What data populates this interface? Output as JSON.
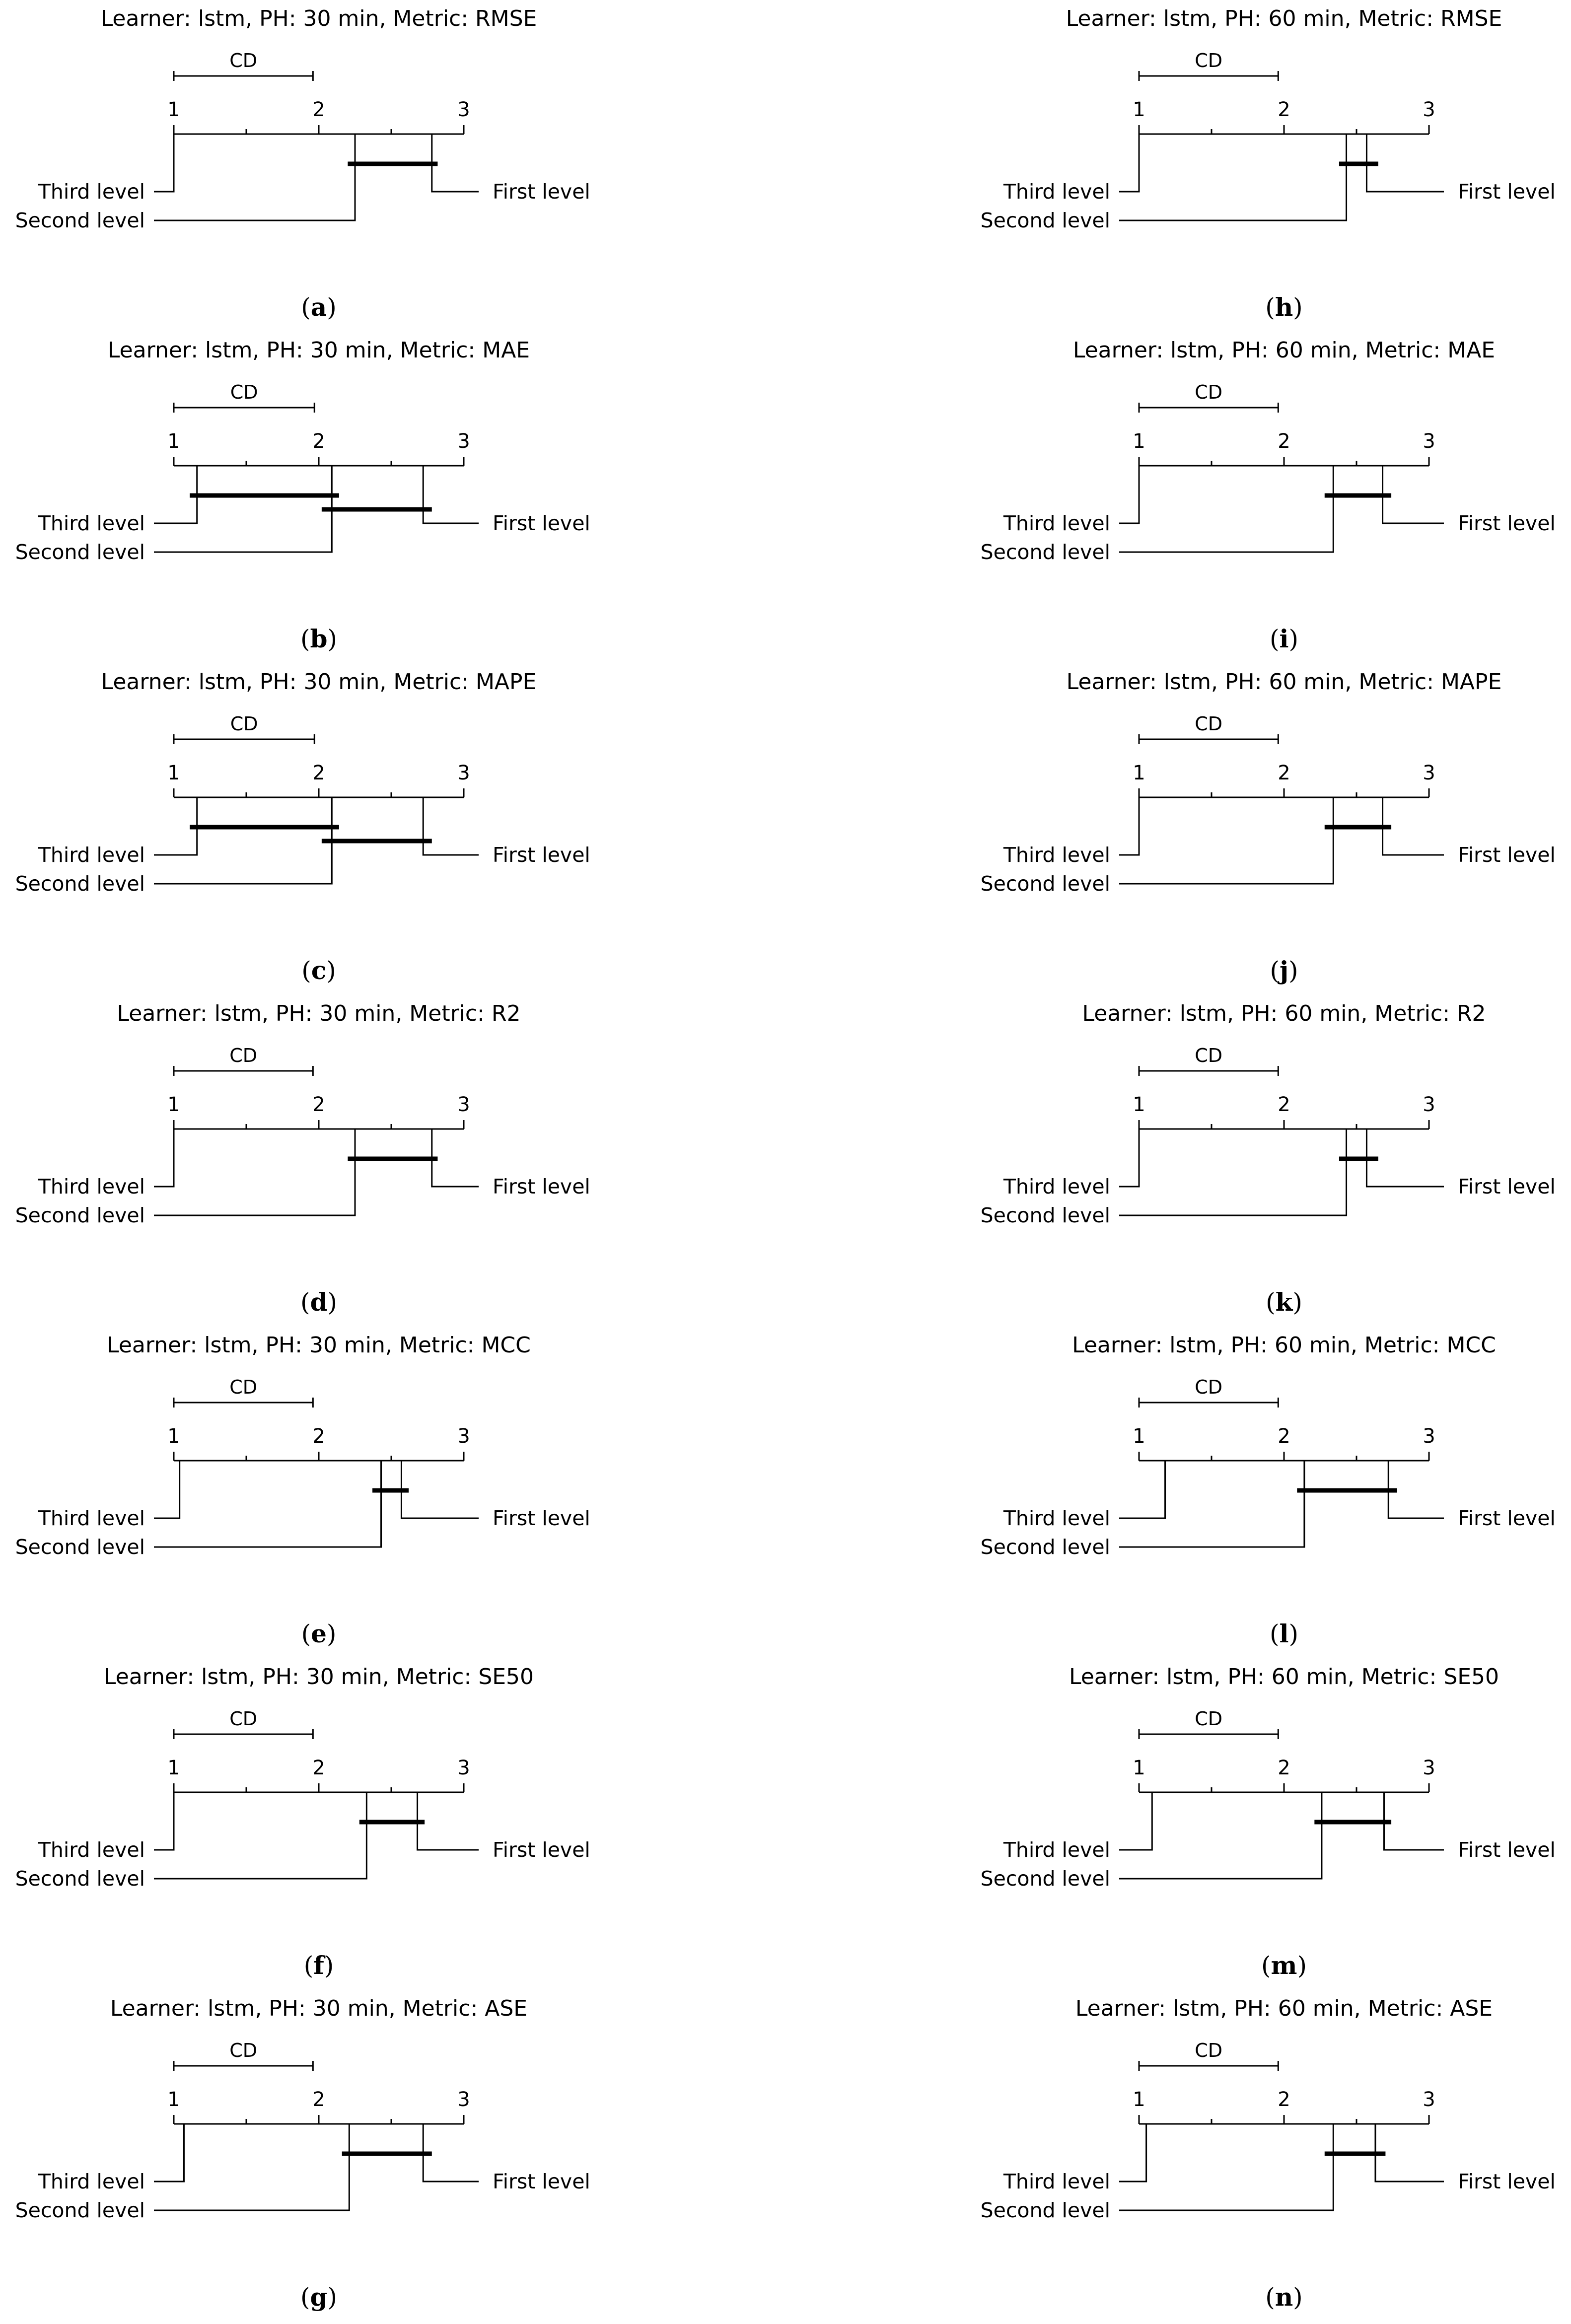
{
  "chart_data": [
    {
      "id": "a",
      "type": "critical-difference",
      "title": "Learner: lstm, PH: 30 min, Metric: RMSE",
      "axis": {
        "min": 1,
        "max": 3,
        "ticks": [
          1,
          2,
          3
        ]
      },
      "cd_label": "CD",
      "cd": 0.96,
      "items": [
        {
          "name": "First level",
          "rank": 2.78
        },
        {
          "name": "Second level",
          "rank": 2.25
        },
        {
          "name": "Third level",
          "rank": 1.0
        }
      ],
      "cliques": [
        [
          2.2,
          2.82
        ]
      ],
      "caption": "a"
    },
    {
      "id": "b",
      "type": "critical-difference",
      "title": "Learner: lstm, PH: 30 min, Metric: MAE",
      "axis": {
        "min": 1,
        "max": 3,
        "ticks": [
          1,
          2,
          3
        ]
      },
      "cd_label": "CD",
      "cd": 0.97,
      "items": [
        {
          "name": "First level",
          "rank": 2.72
        },
        {
          "name": "Second level",
          "rank": 2.09
        },
        {
          "name": "Third level",
          "rank": 1.16
        }
      ],
      "cliques": [
        [
          1.11,
          2.14
        ],
        [
          2.02,
          2.78
        ]
      ],
      "caption": "b"
    },
    {
      "id": "c",
      "type": "critical-difference",
      "title": "Learner: lstm, PH: 30 min, Metric: MAPE",
      "axis": {
        "min": 1,
        "max": 3,
        "ticks": [
          1,
          2,
          3
        ]
      },
      "cd_label": "CD",
      "cd": 0.97,
      "items": [
        {
          "name": "First level",
          "rank": 2.72
        },
        {
          "name": "Second level",
          "rank": 2.09
        },
        {
          "name": "Third level",
          "rank": 1.16
        }
      ],
      "cliques": [
        [
          1.11,
          2.14
        ],
        [
          2.02,
          2.78
        ]
      ],
      "caption": "c"
    },
    {
      "id": "d",
      "type": "critical-difference",
      "title": "Learner: lstm, PH: 30 min, Metric: R2",
      "axis": {
        "min": 1,
        "max": 3,
        "ticks": [
          1,
          2,
          3
        ]
      },
      "cd_label": "CD",
      "cd": 0.96,
      "items": [
        {
          "name": "First level",
          "rank": 2.78
        },
        {
          "name": "Second level",
          "rank": 2.25
        },
        {
          "name": "Third level",
          "rank": 1.0
        }
      ],
      "cliques": [
        [
          2.2,
          2.82
        ]
      ],
      "caption": "d"
    },
    {
      "id": "e",
      "type": "critical-difference",
      "title": "Learner: lstm, PH: 30 min, Metric: MCC",
      "axis": {
        "min": 1,
        "max": 3,
        "ticks": [
          1,
          2,
          3
        ]
      },
      "cd_label": "CD",
      "cd": 0.96,
      "items": [
        {
          "name": "First level",
          "rank": 2.57
        },
        {
          "name": "Second level",
          "rank": 2.43
        },
        {
          "name": "Third level",
          "rank": 1.04
        }
      ],
      "cliques": [
        [
          2.37,
          2.62
        ]
      ],
      "caption": "e"
    },
    {
      "id": "f",
      "type": "critical-difference",
      "title": "Learner: lstm, PH: 30 min, Metric: SE50",
      "axis": {
        "min": 1,
        "max": 3,
        "ticks": [
          1,
          2,
          3
        ]
      },
      "cd_label": "CD",
      "cd": 0.96,
      "items": [
        {
          "name": "First level",
          "rank": 2.68
        },
        {
          "name": "Second level",
          "rank": 2.33
        },
        {
          "name": "Third level",
          "rank": 1.0
        }
      ],
      "cliques": [
        [
          2.28,
          2.73
        ]
      ],
      "caption": "f"
    },
    {
      "id": "g",
      "type": "critical-difference",
      "title": "Learner: lstm, PH: 30 min, Metric: ASE",
      "axis": {
        "min": 1,
        "max": 3,
        "ticks": [
          1,
          2,
          3
        ]
      },
      "cd_label": "CD",
      "cd": 0.96,
      "items": [
        {
          "name": "First level",
          "rank": 2.72
        },
        {
          "name": "Second level",
          "rank": 2.21
        },
        {
          "name": "Third level",
          "rank": 1.07
        }
      ],
      "cliques": [
        [
          2.16,
          2.78
        ]
      ],
      "caption": "g"
    },
    {
      "id": "h",
      "type": "critical-difference",
      "title": "Learner: lstm, PH: 60 min, Metric: RMSE",
      "axis": {
        "min": 1,
        "max": 3,
        "ticks": [
          1,
          2,
          3
        ]
      },
      "cd_label": "CD",
      "cd": 0.96,
      "items": [
        {
          "name": "First level",
          "rank": 2.57
        },
        {
          "name": "Second level",
          "rank": 2.43
        },
        {
          "name": "Third level",
          "rank": 1.0
        }
      ],
      "cliques": [
        [
          2.38,
          2.65
        ]
      ],
      "caption": "h"
    },
    {
      "id": "i",
      "type": "critical-difference",
      "title": "Learner: lstm, PH: 60 min, Metric: MAE",
      "axis": {
        "min": 1,
        "max": 3,
        "ticks": [
          1,
          2,
          3
        ]
      },
      "cd_label": "CD",
      "cd": 0.96,
      "items": [
        {
          "name": "First level",
          "rank": 2.68
        },
        {
          "name": "Second level",
          "rank": 2.34
        },
        {
          "name": "Third level",
          "rank": 1.0
        }
      ],
      "cliques": [
        [
          2.28,
          2.74
        ]
      ],
      "caption": "i"
    },
    {
      "id": "j",
      "type": "critical-difference",
      "title": "Learner: lstm, PH: 60 min, Metric: MAPE",
      "axis": {
        "min": 1,
        "max": 3,
        "ticks": [
          1,
          2,
          3
        ]
      },
      "cd_label": "CD",
      "cd": 0.96,
      "items": [
        {
          "name": "First level",
          "rank": 2.68
        },
        {
          "name": "Second level",
          "rank": 2.34
        },
        {
          "name": "Third level",
          "rank": 1.0
        }
      ],
      "cliques": [
        [
          2.28,
          2.74
        ]
      ],
      "caption": "j"
    },
    {
      "id": "k",
      "type": "critical-difference",
      "title": "Learner: lstm, PH: 60 min, Metric: R2",
      "axis": {
        "min": 1,
        "max": 3,
        "ticks": [
          1,
          2,
          3
        ]
      },
      "cd_label": "CD",
      "cd": 0.96,
      "items": [
        {
          "name": "First level",
          "rank": 2.57
        },
        {
          "name": "Second level",
          "rank": 2.43
        },
        {
          "name": "Third level",
          "rank": 1.0
        }
      ],
      "cliques": [
        [
          2.38,
          2.65
        ]
      ],
      "caption": "k"
    },
    {
      "id": "l",
      "type": "critical-difference",
      "title": "Learner: lstm, PH: 60 min, Metric: MCC",
      "axis": {
        "min": 1,
        "max": 3,
        "ticks": [
          1,
          2,
          3
        ]
      },
      "cd_label": "CD",
      "cd": 0.96,
      "items": [
        {
          "name": "First level",
          "rank": 2.72
        },
        {
          "name": "Second level",
          "rank": 2.14
        },
        {
          "name": "Third level",
          "rank": 1.18
        }
      ],
      "cliques": [
        [
          2.09,
          2.78
        ]
      ],
      "caption": "l"
    },
    {
      "id": "m",
      "type": "critical-difference",
      "title": "Learner: lstm, PH: 60 min, Metric: SE50",
      "axis": {
        "min": 1,
        "max": 3,
        "ticks": [
          1,
          2,
          3
        ]
      },
      "cd_label": "CD",
      "cd": 0.96,
      "items": [
        {
          "name": "First level",
          "rank": 2.69
        },
        {
          "name": "Second level",
          "rank": 2.26
        },
        {
          "name": "Third level",
          "rank": 1.09
        }
      ],
      "cliques": [
        [
          2.21,
          2.74
        ]
      ],
      "caption": "m"
    },
    {
      "id": "n",
      "type": "critical-difference",
      "title": "Learner: lstm, PH: 60 min, Metric: ASE",
      "axis": {
        "min": 1,
        "max": 3,
        "ticks": [
          1,
          2,
          3
        ]
      },
      "cd_label": "CD",
      "cd": 0.96,
      "items": [
        {
          "name": "First level",
          "rank": 2.63
        },
        {
          "name": "Second level",
          "rank": 2.34
        },
        {
          "name": "Third level",
          "rank": 1.05
        }
      ],
      "cliques": [
        [
          2.28,
          2.7
        ]
      ],
      "caption": "n"
    }
  ]
}
